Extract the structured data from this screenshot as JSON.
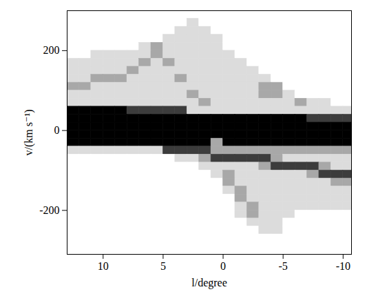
{
  "chart_data": {
    "type": "heatmap",
    "x_label": "l/degree",
    "y_label": "v/(km s⁻¹)",
    "xlim": [
      13,
      -10.7
    ],
    "ylim": [
      -310,
      300
    ],
    "xticks": [
      10,
      5,
      0,
      -5,
      -10
    ],
    "yticks": [
      200,
      0,
      -200
    ],
    "colors": [
      "#ffffff",
      "#dcdcdc",
      "#a8a8a8",
      "#3c3c3c",
      "#000000"
    ],
    "x": [
      12.5,
      11.5,
      10.5,
      9.5,
      8.5,
      7.5,
      6.5,
      5.5,
      4.5,
      3.5,
      2.5,
      1.5,
      0.5,
      -0.5,
      -1.5,
      -2.5,
      -3.5,
      -4.5,
      -5.5,
      -6.5,
      -7.5,
      -8.5,
      -9.5,
      -10.5
    ],
    "y": [
      290,
      270,
      250,
      230,
      210,
      190,
      170,
      150,
      130,
      110,
      90,
      70,
      50,
      30,
      10,
      -10,
      -30,
      -50,
      -70,
      -90,
      -110,
      -130,
      -150,
      -170,
      -190,
      -210,
      -230,
      -250,
      -270,
      -290
    ],
    "cells": [
      [
        0,
        0,
        0,
        0,
        0,
        0,
        0,
        0,
        0,
        0,
        0,
        0,
        0,
        0,
        0,
        0,
        0,
        0,
        0,
        0,
        0,
        0,
        0,
        0
      ],
      [
        0,
        0,
        0,
        0,
        0,
        0,
        0,
        0,
        0,
        0,
        1,
        0,
        0,
        0,
        0,
        0,
        0,
        0,
        0,
        0,
        0,
        0,
        0,
        0
      ],
      [
        0,
        0,
        0,
        0,
        0,
        0,
        0,
        0,
        0,
        1,
        1,
        1,
        0,
        0,
        0,
        0,
        0,
        0,
        0,
        0,
        0,
        0,
        0,
        0
      ],
      [
        0,
        0,
        0,
        0,
        0,
        0,
        0,
        0,
        1,
        1,
        1,
        1,
        1,
        0,
        0,
        0,
        0,
        0,
        0,
        0,
        0,
        0,
        0,
        0
      ],
      [
        0,
        0,
        0,
        0,
        0,
        0,
        1,
        2,
        1,
        1,
        1,
        1,
        1,
        0,
        0,
        0,
        0,
        0,
        0,
        0,
        0,
        0,
        0,
        0
      ],
      [
        0,
        0,
        1,
        1,
        1,
        1,
        1,
        2,
        1,
        1,
        1,
        1,
        1,
        1,
        0,
        0,
        0,
        0,
        0,
        0,
        0,
        0,
        0,
        0
      ],
      [
        1,
        1,
        1,
        1,
        1,
        1,
        2,
        1,
        2,
        1,
        1,
        1,
        1,
        1,
        1,
        0,
        0,
        0,
        0,
        0,
        0,
        0,
        0,
        0
      ],
      [
        1,
        1,
        1,
        1,
        1,
        2,
        1,
        1,
        1,
        1,
        1,
        1,
        1,
        1,
        1,
        1,
        0,
        0,
        0,
        0,
        0,
        0,
        0,
        0
      ],
      [
        1,
        1,
        2,
        2,
        2,
        1,
        1,
        1,
        1,
        2,
        1,
        1,
        1,
        1,
        1,
        1,
        1,
        0,
        0,
        0,
        0,
        0,
        0,
        0
      ],
      [
        2,
        2,
        1,
        1,
        1,
        1,
        1,
        1,
        1,
        1,
        1,
        1,
        1,
        1,
        1,
        1,
        2,
        2,
        0,
        0,
        0,
        0,
        0,
        0
      ],
      [
        1,
        1,
        1,
        1,
        1,
        1,
        1,
        1,
        1,
        1,
        2,
        1,
        1,
        1,
        1,
        1,
        2,
        2,
        1,
        0,
        0,
        0,
        0,
        0
      ],
      [
        1,
        1,
        1,
        1,
        1,
        1,
        1,
        1,
        1,
        1,
        1,
        2,
        1,
        1,
        1,
        1,
        1,
        1,
        1,
        2,
        1,
        1,
        0,
        0
      ],
      [
        4,
        4,
        4,
        4,
        4,
        3,
        3,
        3,
        3,
        3,
        1,
        1,
        1,
        1,
        1,
        1,
        1,
        1,
        1,
        1,
        1,
        1,
        1,
        1
      ],
      [
        4,
        4,
        4,
        4,
        4,
        4,
        4,
        4,
        4,
        4,
        4,
        4,
        4,
        4,
        4,
        4,
        4,
        4,
        4,
        4,
        3,
        3,
        3,
        3
      ],
      [
        4,
        4,
        4,
        4,
        4,
        4,
        4,
        4,
        4,
        4,
        4,
        4,
        4,
        4,
        4,
        4,
        4,
        4,
        4,
        4,
        4,
        4,
        4,
        4
      ],
      [
        4,
        4,
        4,
        4,
        4,
        4,
        4,
        4,
        4,
        4,
        4,
        4,
        4,
        4,
        4,
        4,
        4,
        4,
        4,
        4,
        4,
        4,
        4,
        4
      ],
      [
        4,
        4,
        4,
        4,
        4,
        4,
        4,
        4,
        4,
        4,
        4,
        4,
        2,
        4,
        4,
        4,
        4,
        4,
        4,
        4,
        4,
        4,
        4,
        4
      ],
      [
        1,
        1,
        1,
        1,
        1,
        1,
        1,
        1,
        3,
        3,
        3,
        3,
        2,
        2,
        2,
        2,
        2,
        2,
        2,
        2,
        2,
        2,
        2,
        2
      ],
      [
        0,
        0,
        0,
        0,
        0,
        0,
        0,
        0,
        0,
        1,
        1,
        2,
        3,
        3,
        3,
        3,
        3,
        2,
        1,
        1,
        1,
        1,
        1,
        1
      ],
      [
        0,
        0,
        0,
        0,
        0,
        0,
        0,
        0,
        0,
        0,
        0,
        1,
        1,
        1,
        1,
        1,
        2,
        3,
        3,
        3,
        3,
        2,
        1,
        1
      ],
      [
        0,
        0,
        0,
        0,
        0,
        0,
        0,
        0,
        0,
        0,
        0,
        0,
        1,
        2,
        1,
        1,
        1,
        1,
        1,
        1,
        2,
        3,
        3,
        3
      ],
      [
        0,
        0,
        0,
        0,
        0,
        0,
        0,
        0,
        0,
        0,
        0,
        0,
        0,
        2,
        1,
        1,
        1,
        1,
        1,
        1,
        1,
        1,
        2,
        2
      ],
      [
        0,
        0,
        0,
        0,
        0,
        0,
        0,
        0,
        0,
        0,
        0,
        0,
        0,
        1,
        2,
        1,
        1,
        1,
        1,
        1,
        1,
        1,
        1,
        1
      ],
      [
        0,
        0,
        0,
        0,
        0,
        0,
        0,
        0,
        0,
        0,
        0,
        0,
        0,
        0,
        2,
        1,
        1,
        1,
        1,
        1,
        1,
        1,
        1,
        1
      ],
      [
        0,
        0,
        0,
        0,
        0,
        0,
        0,
        0,
        0,
        0,
        0,
        0,
        0,
        0,
        1,
        2,
        1,
        1,
        1,
        1,
        1,
        1,
        1,
        1
      ],
      [
        0,
        0,
        0,
        0,
        0,
        0,
        0,
        0,
        0,
        0,
        0,
        0,
        0,
        0,
        1,
        2,
        1,
        1,
        1,
        0,
        0,
        0,
        0,
        0
      ],
      [
        0,
        0,
        0,
        0,
        0,
        0,
        0,
        0,
        0,
        0,
        0,
        0,
        0,
        0,
        0,
        1,
        1,
        1,
        0,
        0,
        0,
        0,
        0,
        0
      ],
      [
        0,
        0,
        0,
        0,
        0,
        0,
        0,
        0,
        0,
        0,
        0,
        0,
        0,
        0,
        0,
        0,
        1,
        1,
        0,
        0,
        0,
        0,
        0,
        0
      ],
      [
        0,
        0,
        0,
        0,
        0,
        0,
        0,
        0,
        0,
        0,
        0,
        0,
        0,
        0,
        0,
        0,
        0,
        0,
        0,
        0,
        0,
        0,
        0,
        0
      ],
      [
        0,
        0,
        0,
        0,
        0,
        0,
        0,
        0,
        0,
        0,
        0,
        0,
        0,
        0,
        0,
        0,
        0,
        0,
        0,
        0,
        0,
        0,
        0,
        0
      ]
    ]
  }
}
